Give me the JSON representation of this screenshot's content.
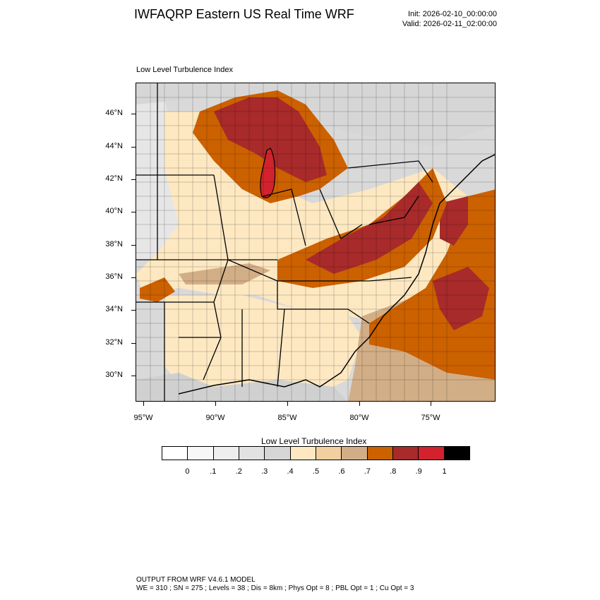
{
  "title": "IWFAQRP Eastern US Real Time WRF",
  "init_line": "Init: 2026-02-10_00:00:00",
  "valid_line": "Valid: 2026-02-11_02:00:00",
  "subtitle": "Low Level Turbulence Index",
  "lat_labels": [
    "46°N",
    "44°N",
    "42°N",
    "40°N",
    "38°N",
    "36°N",
    "34°N",
    "32°N",
    "30°N"
  ],
  "lon_labels": [
    "95°W",
    "90°W",
    "85°W",
    "80°W",
    "75°W"
  ],
  "colorbar": {
    "title": "Low Level Turbulence Index",
    "labels": [
      "0",
      ".1",
      ".2",
      ".3",
      ".4",
      ".5",
      ".6",
      ".7",
      ".8",
      ".9",
      "1"
    ],
    "colors": [
      "#ffffff",
      "#f7f7f7",
      "#eeeeee",
      "#e2e2e2",
      "#d6d6d6",
      "#fde8c2",
      "#f2cf9e",
      "#d2ae86",
      "#cc6100",
      "#a82a2a",
      "#d2222d",
      "#000000"
    ]
  },
  "footer": {
    "line1": "OUTPUT FROM WRF V4.6.1 MODEL",
    "line2": "WE = 310 ; SN = 275 ; Levels = 38 ; Dis = 8km ; Phys Opt = 8 ; PBL Opt = 1 ; Cu Opt = 3"
  }
}
